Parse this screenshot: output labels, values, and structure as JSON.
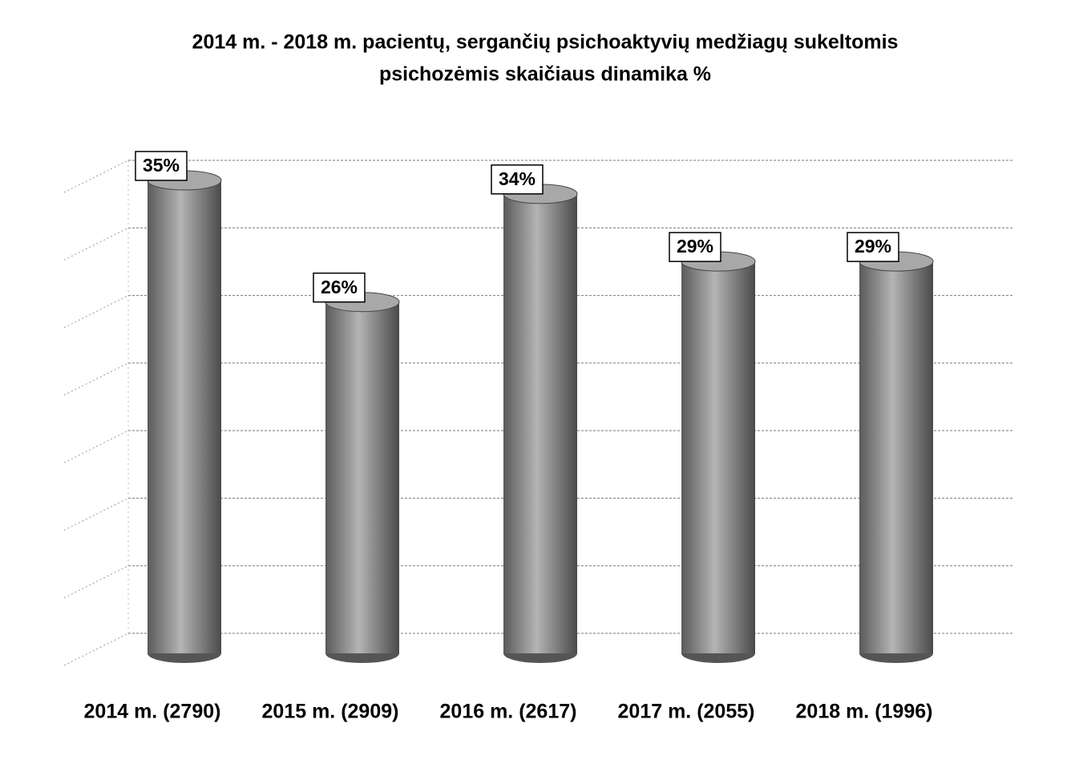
{
  "chart_data": {
    "type": "bar",
    "title": [
      "2014 m. - 2018 m. pacientų, sergančių psichoaktyvių medžiagų sukeltomis",
      "psichozėmis skaičiaus dinamika %"
    ],
    "categories": [
      "2014 m. (2790)",
      "2015 m. (2909)",
      "2016 m. (2617)",
      "2017 m. (2055)",
      "2018 m. (1996)"
    ],
    "values": [
      35,
      26,
      34,
      29,
      29
    ],
    "value_labels": [
      "35%",
      "26%",
      "34%",
      "29%",
      "29%"
    ],
    "color": "#8a8a8a",
    "ylim": [
      0,
      35
    ],
    "yticks": [
      0,
      5,
      10,
      15,
      20,
      25,
      30,
      35
    ],
    "grid": true
  }
}
